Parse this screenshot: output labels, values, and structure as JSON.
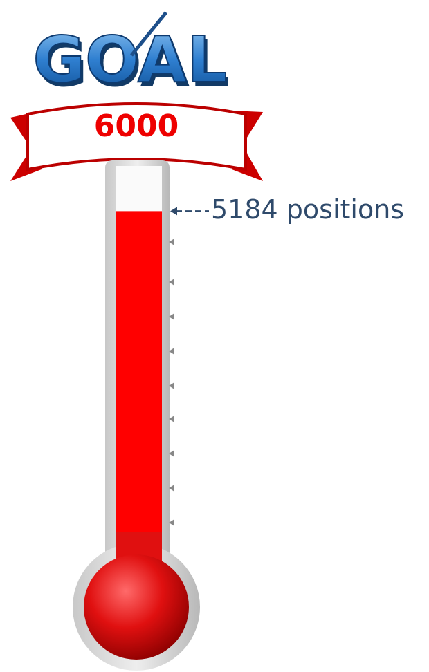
{
  "chart_data": {
    "type": "thermometer",
    "title": "GOAL",
    "goal": 6000,
    "value": 5184,
    "value_label": "5184 positions",
    "color": "#ff0000"
  }
}
